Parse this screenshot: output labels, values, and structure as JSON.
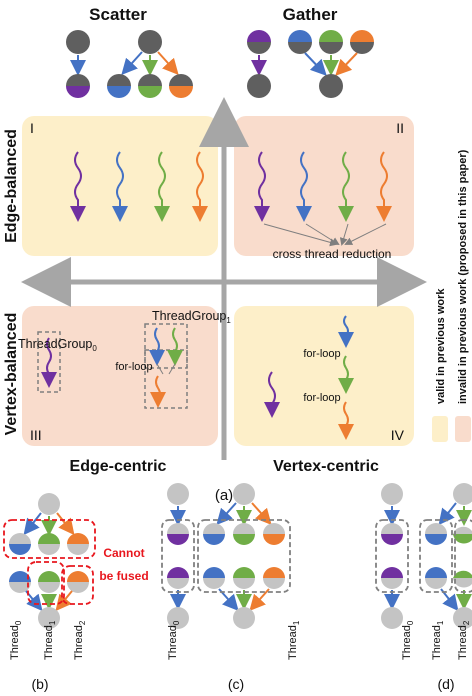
{
  "colors": {
    "gray": "#5f5f5f",
    "light_gray": "#c4c4c4",
    "purple": "#7030a0",
    "blue": "#4472c4",
    "green": "#70ad47",
    "orange": "#ed7d31",
    "valid_fill": "#fdefc9",
    "invalid_fill": "#f9dccc",
    "axis": "#a6a6a6",
    "red": "#e8171e",
    "dash": "#808080"
  },
  "top": {
    "scatter_title": "Scatter",
    "gather_title": "Gather"
  },
  "quadrant_chart": {
    "row_labels": [
      "Edge-balanced",
      "Vertex-balanced"
    ],
    "col_labels": [
      "Edge-centric",
      "Vertex-centric"
    ],
    "quadrants": [
      {
        "numeral": "I"
      },
      {
        "numeral": "II",
        "note": "cross thread reduction"
      },
      {
        "numeral": "III",
        "group0": "ThreadGroup",
        "group0_sub": "0",
        "group1": "ThreadGroup",
        "group1_sub": "1",
        "loop": "for-loop"
      },
      {
        "numeral": "IV",
        "loop1": "for-loop",
        "loop2": "for-loop"
      }
    ],
    "caption": "(a)"
  },
  "legend": {
    "valid": "valid in previous work",
    "invalid": "invalid in previous work (proposed in this paper)"
  },
  "subfigures": {
    "b": {
      "caption": "(b)",
      "warning_line1": "Cannot",
      "warning_line2": "be fused",
      "thread_label": "Thread",
      "subs": [
        "0",
        "1",
        "2"
      ]
    },
    "c": {
      "caption": "(c)",
      "thread_label": "Thread",
      "subs": [
        "0",
        "1"
      ]
    },
    "d": {
      "caption": "(d)",
      "thread_label": "Thread",
      "subs": [
        "0",
        "1",
        "2"
      ]
    }
  }
}
